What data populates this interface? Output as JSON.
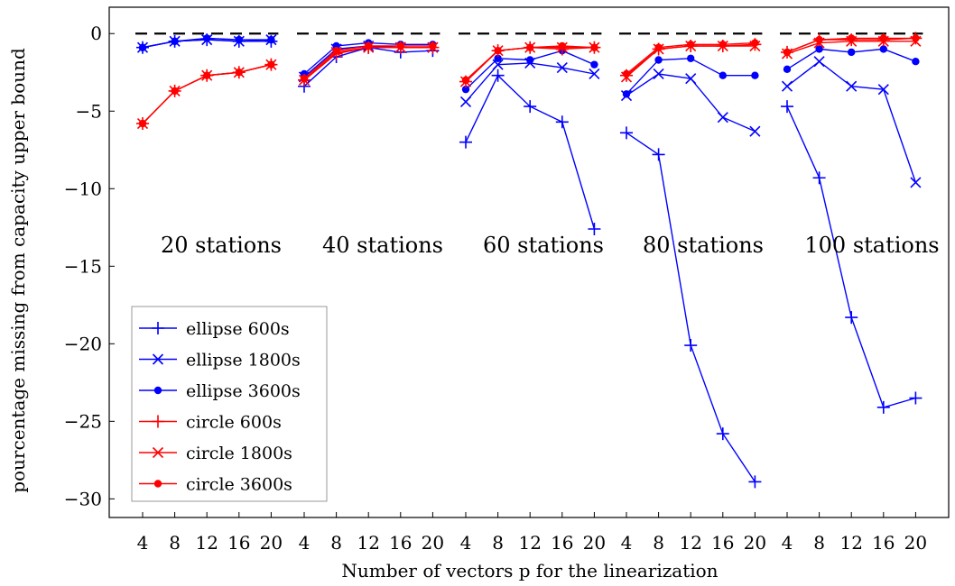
{
  "chart_data": {
    "type": "line",
    "xlabel": "Number of vectors p for the linearization",
    "ylabel": "pourcentage missing from capacity upper bound",
    "ylim": [
      -31.2,
      1.7
    ],
    "yticks": [
      0,
      -5,
      -10,
      -15,
      -20,
      -25,
      -30
    ],
    "ytick_labels": [
      "0",
      "−5",
      "−10",
      "−15",
      "−20",
      "−25",
      "−30"
    ],
    "x": [
      4,
      8,
      12,
      16,
      20
    ],
    "x_labels": [
      "4",
      "8",
      "12",
      "16",
      "20"
    ],
    "reference_line": {
      "y": 0,
      "style": "dashed",
      "color": "#000000"
    },
    "groups": [
      {
        "label": "20 stations"
      },
      {
        "label": "40 stations"
      },
      {
        "label": "60 stations"
      },
      {
        "label": "80 stations"
      },
      {
        "label": "100 stations"
      }
    ],
    "legend_position": "lower-left",
    "series": [
      {
        "name": "ellipse 600s",
        "color": "#0000ff",
        "marker": "plus",
        "values": [
          [
            -0.9,
            -0.5,
            -0.4,
            -0.5,
            -0.5
          ],
          [
            -3.4,
            -1.5,
            -0.9,
            -1.2,
            -1.1
          ],
          [
            -7.0,
            -2.7,
            -4.7,
            -5.7,
            -12.6
          ],
          [
            -6.4,
            -7.8,
            -20.1,
            -25.8,
            -28.9
          ],
          [
            -4.7,
            -9.3,
            -18.3,
            -24.1,
            -23.5
          ]
        ]
      },
      {
        "name": "ellipse 1800s",
        "color": "#0000ff",
        "marker": "x",
        "values": [
          [
            -0.9,
            -0.5,
            -0.4,
            -0.5,
            -0.4
          ],
          [
            -2.8,
            -1.0,
            -0.8,
            -0.9,
            -0.9
          ],
          [
            -4.4,
            -2.0,
            -1.9,
            -2.2,
            -2.6
          ],
          [
            -4.0,
            -2.6,
            -2.9,
            -5.4,
            -6.3
          ],
          [
            -3.4,
            -1.8,
            -3.4,
            -3.6,
            -9.6
          ]
        ]
      },
      {
        "name": "ellipse 3600s",
        "color": "#0000ff",
        "marker": "dot",
        "values": [
          [
            -0.9,
            -0.5,
            -0.3,
            -0.4,
            -0.4
          ],
          [
            -2.6,
            -0.8,
            -0.6,
            -0.7,
            -0.7
          ],
          [
            -3.6,
            -1.6,
            -1.7,
            -1.1,
            -2.0
          ],
          [
            -3.9,
            -1.7,
            -1.6,
            -2.7,
            -2.7
          ],
          [
            -2.3,
            -1.0,
            -1.2,
            -1.0,
            -1.8
          ]
        ]
      },
      {
        "name": "circle 600s",
        "color": "#ff0000",
        "marker": "plus",
        "values": [
          [
            -5.8,
            -3.7,
            -2.7,
            -2.5,
            -2.0
          ],
          [
            -3.0,
            -1.3,
            -0.9,
            -0.9,
            -0.9
          ],
          [
            -3.1,
            -1.1,
            -0.9,
            -1.0,
            -0.9
          ],
          [
            -2.7,
            -1.0,
            -0.8,
            -0.8,
            -0.7
          ],
          [
            -1.2,
            -0.4,
            -0.4,
            -0.4,
            -0.3
          ]
        ]
      },
      {
        "name": "circle 1800s",
        "color": "#ff0000",
        "marker": "x",
        "values": [
          [
            -5.8,
            -3.7,
            -2.7,
            -2.5,
            -2.0
          ],
          [
            -3.0,
            -1.2,
            -0.9,
            -0.9,
            -0.9
          ],
          [
            -3.1,
            -1.1,
            -0.9,
            -0.9,
            -0.9
          ],
          [
            -2.8,
            -1.0,
            -0.8,
            -0.8,
            -0.8
          ],
          [
            -1.3,
            -0.6,
            -0.5,
            -0.5,
            -0.5
          ]
        ]
      },
      {
        "name": "circle 3600s",
        "color": "#ff0000",
        "marker": "dot",
        "values": [
          [
            -5.8,
            -3.7,
            -2.7,
            -2.5,
            -2.0
          ],
          [
            -2.9,
            -1.1,
            -0.8,
            -0.8,
            -0.8
          ],
          [
            -3.0,
            -1.1,
            -0.9,
            -0.8,
            -0.9
          ],
          [
            -2.6,
            -0.9,
            -0.7,
            -0.7,
            -0.6
          ],
          [
            -1.2,
            -0.4,
            -0.3,
            -0.3,
            -0.3
          ]
        ]
      }
    ]
  }
}
